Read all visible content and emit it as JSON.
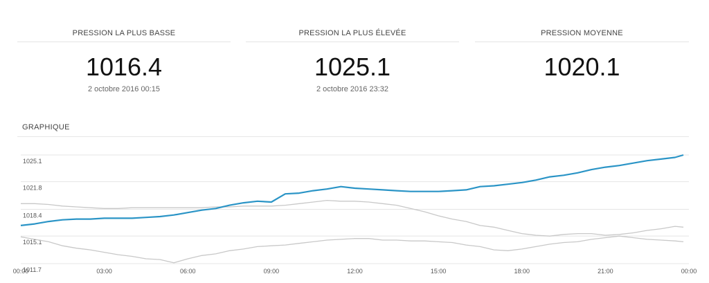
{
  "stats": {
    "low": {
      "label": "PRESSION LA PLUS BASSE",
      "value": "1016.4",
      "date": "2 octobre 2016 00:15"
    },
    "high": {
      "label": "PRESSION LA PLUS ÉLEVÉE",
      "value": "1025.1",
      "date": "2 octobre 2016 23:32"
    },
    "avg": {
      "label": "PRESSION MOYENNE",
      "value": "1020.1"
    }
  },
  "section": {
    "title": "GRAPHIQUE"
  },
  "colors": {
    "main_series": "#2a94c6",
    "reference_series": "#c8c8c8",
    "grid": "#e4e4e4",
    "axis_text": "#555555"
  },
  "chart_data": {
    "type": "line",
    "y_ticks": [
      "1025.1",
      "1021.8",
      "1018.4",
      "1015.1",
      "1011.7"
    ],
    "ylim": [
      1011.7,
      1025.1
    ],
    "x_ticks": [
      "00:00",
      "03:00",
      "06:00",
      "09:00",
      "12:00",
      "15:00",
      "18:00",
      "21:00",
      "00:00"
    ],
    "xlim": [
      0,
      24
    ],
    "grid": true,
    "series": [
      {
        "role": "main",
        "x": [
          0,
          0.5,
          1,
          1.5,
          2,
          2.5,
          3,
          3.5,
          4,
          4.5,
          5,
          5.5,
          6,
          6.5,
          7,
          7.5,
          8,
          8.5,
          9,
          9.5,
          10,
          10.5,
          11,
          11.5,
          12,
          12.5,
          13,
          13.5,
          14,
          14.5,
          15,
          15.5,
          16,
          16.5,
          17,
          17.5,
          18,
          18.5,
          19,
          19.5,
          20,
          20.5,
          21,
          21.5,
          22,
          22.5,
          23,
          23.5,
          23.8
        ],
        "y": [
          1016.4,
          1016.6,
          1016.9,
          1017.1,
          1017.2,
          1017.2,
          1017.3,
          1017.3,
          1017.3,
          1017.4,
          1017.5,
          1017.7,
          1018.0,
          1018.3,
          1018.5,
          1018.9,
          1019.2,
          1019.4,
          1019.3,
          1020.3,
          1020.4,
          1020.7,
          1020.9,
          1021.2,
          1021.0,
          1020.9,
          1020.8,
          1020.7,
          1020.6,
          1020.6,
          1020.6,
          1020.7,
          1020.8,
          1021.2,
          1021.3,
          1021.5,
          1021.7,
          1022.0,
          1022.4,
          1022.6,
          1022.9,
          1023.3,
          1023.6,
          1023.8,
          1024.1,
          1024.4,
          1024.6,
          1024.8,
          1025.1
        ]
      },
      {
        "role": "reference-upper",
        "x": [
          0,
          0.5,
          1,
          1.5,
          2,
          2.5,
          3,
          3.5,
          4,
          4.5,
          5,
          5.5,
          6,
          6.5,
          7,
          7.5,
          8,
          8.5,
          9,
          9.5,
          10,
          10.5,
          11,
          11.5,
          12,
          12.5,
          13,
          13.5,
          14,
          14.5,
          15,
          15.5,
          16,
          16.5,
          17,
          17.5,
          18,
          18.5,
          19,
          19.5,
          20,
          20.5,
          21,
          21.5,
          22,
          22.5,
          23,
          23.5,
          23.8
        ],
        "y": [
          1019.1,
          1019.1,
          1019.0,
          1018.8,
          1018.7,
          1018.6,
          1018.5,
          1018.5,
          1018.6,
          1018.6,
          1018.6,
          1018.6,
          1018.6,
          1018.6,
          1018.7,
          1018.7,
          1018.8,
          1018.8,
          1018.8,
          1018.9,
          1019.1,
          1019.3,
          1019.5,
          1019.4,
          1019.4,
          1019.3,
          1019.1,
          1018.9,
          1018.5,
          1018.1,
          1017.6,
          1017.2,
          1016.9,
          1016.4,
          1016.2,
          1015.8,
          1015.4,
          1015.2,
          1015.1,
          1015.3,
          1015.4,
          1015.4,
          1015.2,
          1015.3,
          1015.5,
          1015.8,
          1016.0,
          1016.3,
          1016.2
        ]
      },
      {
        "role": "reference-lower",
        "x": [
          0,
          0.5,
          1,
          1.5,
          2,
          2.5,
          3,
          3.5,
          4,
          4.5,
          5,
          5.5,
          6,
          6.5,
          7,
          7.5,
          8,
          8.5,
          9,
          9.5,
          10,
          10.5,
          11,
          11.5,
          12,
          12.5,
          13,
          13.5,
          14,
          14.5,
          15,
          15.5,
          16,
          16.5,
          17,
          17.5,
          18,
          18.5,
          19,
          19.5,
          20,
          20.5,
          21,
          21.5,
          22,
          22.5,
          23,
          23.5,
          23.8
        ],
        "y": [
          1015.0,
          1014.7,
          1014.4,
          1013.9,
          1013.6,
          1013.4,
          1013.1,
          1012.8,
          1012.6,
          1012.3,
          1012.2,
          1011.8,
          1012.3,
          1012.7,
          1012.9,
          1013.3,
          1013.5,
          1013.8,
          1013.9,
          1014.0,
          1014.2,
          1014.4,
          1014.6,
          1014.7,
          1014.8,
          1014.8,
          1014.6,
          1014.6,
          1014.5,
          1014.5,
          1014.4,
          1014.3,
          1014.0,
          1013.8,
          1013.4,
          1013.3,
          1013.5,
          1013.8,
          1014.1,
          1014.3,
          1014.4,
          1014.7,
          1014.9,
          1015.1,
          1014.9,
          1014.7,
          1014.6,
          1014.5,
          1014.4
        ]
      }
    ]
  }
}
